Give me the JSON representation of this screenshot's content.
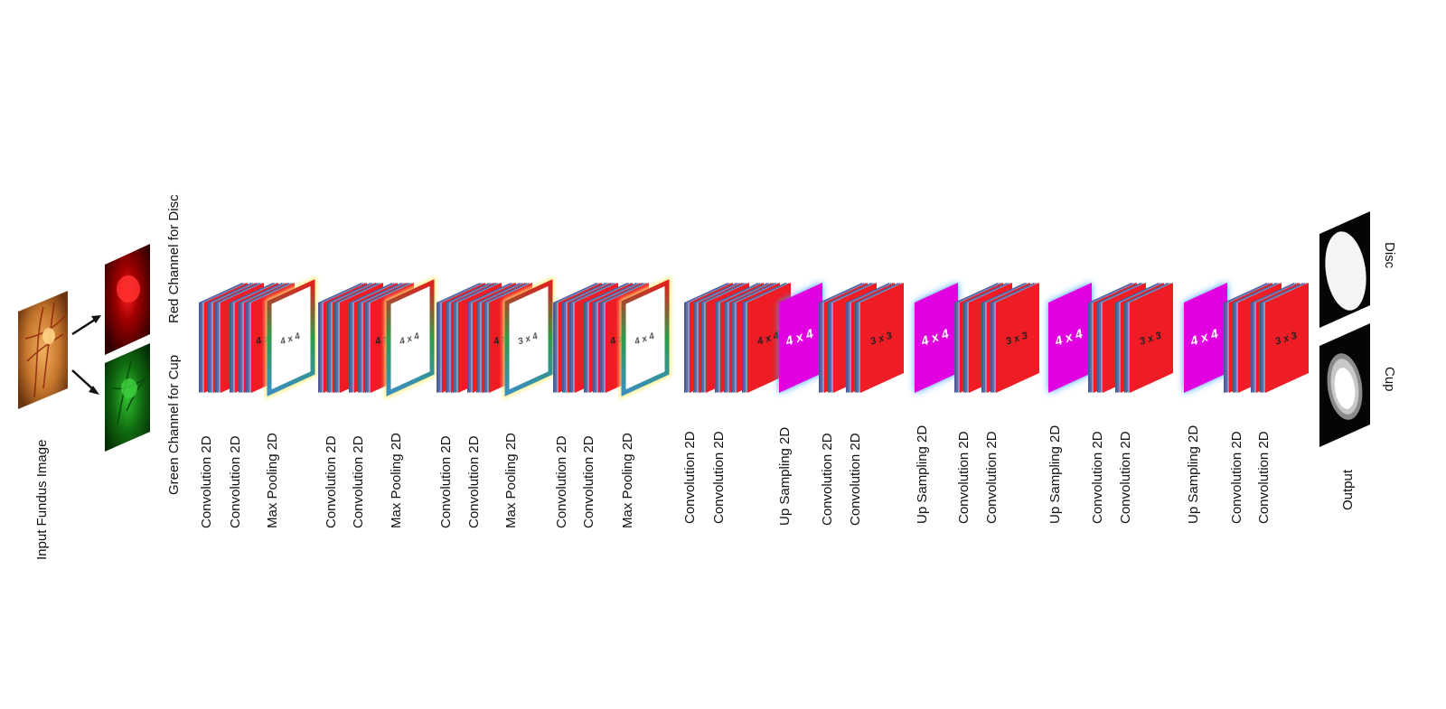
{
  "input": {
    "label": "Input Fundus Image"
  },
  "channels": {
    "red_label": "Red Channel for Disc",
    "green_label": "Green Channel for Cup"
  },
  "stages": [
    {
      "id": "e1",
      "kind": "encoder",
      "layers": [
        "Convolution 2D",
        "Convolution 2D",
        "Max Pooling 2D"
      ],
      "conv_kernel": "4 x 4",
      "pool_kernel": "4 x 4"
    },
    {
      "id": "e2",
      "kind": "encoder",
      "layers": [
        "Convolution 2D",
        "Convolution 2D",
        "Max Pooling 2D"
      ],
      "conv_kernel": "4 x 4",
      "pool_kernel": "4 x 4"
    },
    {
      "id": "e3",
      "kind": "encoder",
      "layers": [
        "Convolution 2D",
        "Convolution 2D",
        "Max Pooling 2D"
      ],
      "conv_kernel": "4 x 4",
      "pool_kernel": "3 x 4"
    },
    {
      "id": "e4",
      "kind": "encoder",
      "layers": [
        "Convolution 2D",
        "Convolution 2D",
        "Max Pooling 2D"
      ],
      "conv_kernel": "4 x 4",
      "pool_kernel": "4 x 4"
    },
    {
      "id": "b",
      "kind": "bottleneck",
      "layers": [
        "Convolution 2D",
        "Convolution 2D"
      ],
      "conv_kernel": "4 x 4"
    },
    {
      "id": "d1",
      "kind": "decoder",
      "layers": [
        "Up Sampling 2D",
        "Convolution 2D",
        "Convolution 2D"
      ],
      "up_kernel": "4 x 4",
      "conv_kernel": "3 x 3"
    },
    {
      "id": "d2",
      "kind": "decoder",
      "layers": [
        "Up Sampling 2D",
        "Convolution 2D",
        "Convolution 2D"
      ],
      "up_kernel": "4 x 4",
      "conv_kernel": "3 x 3"
    },
    {
      "id": "d3",
      "kind": "decoder",
      "layers": [
        "Up Sampling 2D",
        "Convolution 2D",
        "Convolution 2D"
      ],
      "up_kernel": "4 x 4",
      "conv_kernel": "3 x 3"
    },
    {
      "id": "d4",
      "kind": "decoder",
      "layers": [
        "Up Sampling 2D",
        "Convolution 2D",
        "Convolution 2D"
      ],
      "up_kernel": "4 x 4",
      "conv_kernel": "3 x 3"
    }
  ],
  "outputs": {
    "label": "Output",
    "disc_label": "Disc",
    "cup_label": "Cup"
  },
  "colors": {
    "conv": "#ee1c24",
    "conv_edge": "#5a6fa8",
    "upsample": "#e000e0",
    "upsample_glow": "#3aa0ff",
    "pool_frame_top": "#e02020",
    "pool_frame_bottom": "#3a8fc0"
  }
}
